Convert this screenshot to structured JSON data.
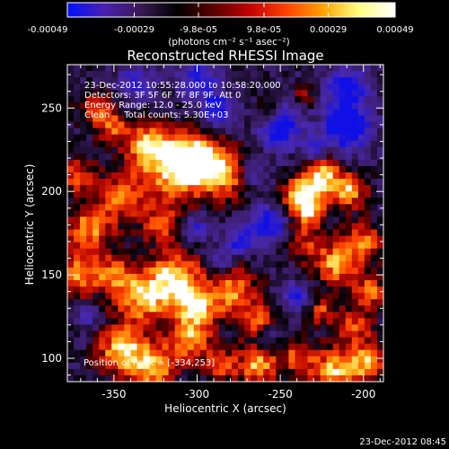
{
  "chart_data": {
    "type": "heatmap",
    "title": "Reconstructed RHESSI Image",
    "xlabel": "Heliocentric X (arcsec)",
    "ylabel": "Heliocentric Y (arcsec)",
    "xlim": [
      -378,
      -188
    ],
    "ylim": [
      86,
      276
    ],
    "xticks": [
      -350,
      -300,
      -250,
      -200
    ],
    "yticks": [
      100,
      150,
      200,
      250
    ],
    "colorbar": {
      "range": [
        -0.00049,
        0.00049
      ],
      "tick_values": [
        -0.00049,
        -0.00029,
        -9.8e-05,
        9.8e-05,
        0.00029,
        0.00049
      ],
      "tick_labels": [
        "-0.00049",
        "-0.00029",
        "-9.8e-05",
        "9.8e-05",
        "0.00029",
        "0.00049"
      ],
      "units_label": "(photons cm⁻² s⁻¹ asec⁻²)",
      "colors": [
        "#0010ff",
        "#4a1fb0",
        "#3a1a55",
        "#000000",
        "#5a0000",
        "#c00000",
        "#ff4000",
        "#ffa000",
        "#ffff80",
        "#ffffff"
      ]
    },
    "annotations": {
      "time_range": "23-Dec-2012 10:55:28.000 to 10:58:20.000",
      "detectors": "Detectors: 3F 5F 6F 7F 8F 9F, Att 0",
      "energy": "Energy Range: 12.0 - 25.0 keV",
      "clean": "Clean     Total counts: 5.30E+03",
      "peak": "Position of Peak = [-334,253]"
    },
    "peak_position": [
      -334,
      253
    ],
    "blobs": [
      [
        -330,
        228,
        10,
        0.8
      ],
      [
        -312,
        213,
        14,
        1.0
      ],
      [
        -300,
        220,
        9,
        0.9
      ],
      [
        -283,
        211,
        10,
        0.9
      ],
      [
        -345,
        197,
        10,
        0.7
      ],
      [
        -322,
        180,
        8,
        0.6
      ],
      [
        -365,
        178,
        10,
        0.8
      ],
      [
        -372,
        210,
        8,
        0.6
      ],
      [
        -372,
        150,
        9,
        0.8
      ],
      [
        -350,
        150,
        8,
        0.7
      ],
      [
        -333,
        136,
        11,
        0.9
      ],
      [
        -313,
        148,
        11,
        1.0
      ],
      [
        -300,
        130,
        9,
        0.9
      ],
      [
        -278,
        140,
        10,
        0.8
      ],
      [
        -263,
        122,
        8,
        0.6
      ],
      [
        -238,
        196,
        8,
        0.9
      ],
      [
        -225,
        208,
        9,
        1.0
      ],
      [
        -208,
        200,
        7,
        0.8
      ],
      [
        -232,
        186,
        7,
        0.6
      ],
      [
        -216,
        157,
        9,
        0.9
      ],
      [
        -200,
        170,
        8,
        0.7
      ],
      [
        -236,
        168,
        7,
        0.5
      ],
      [
        -196,
        140,
        7,
        0.7
      ],
      [
        -205,
        120,
        8,
        0.6
      ],
      [
        -226,
        128,
        6,
        0.6
      ],
      [
        -345,
        105,
        10,
        1.0
      ],
      [
        -326,
        95,
        9,
        0.9
      ],
      [
        -305,
        110,
        9,
        0.8
      ],
      [
        -285,
        96,
        7,
        0.6
      ],
      [
        -263,
        96,
        8,
        0.9
      ],
      [
        -218,
        92,
        10,
        0.9
      ],
      [
        -198,
        98,
        8,
        0.8
      ],
      [
        -240,
        101,
        7,
        0.6
      ],
      [
        -360,
        248,
        8,
        0.6
      ],
      [
        -350,
        238,
        6,
        0.5
      ],
      [
        -258,
        248,
        6,
        0.4
      ],
      [
        -235,
        258,
        5,
        0.4
      ],
      [
        -288,
        250,
        7,
        -0.8
      ],
      [
        -250,
        238,
        9,
        -0.9
      ],
      [
        -210,
        238,
        10,
        -1.0
      ],
      [
        -210,
        262,
        9,
        -0.8
      ],
      [
        -300,
        268,
        8,
        -0.7
      ],
      [
        -258,
        180,
        8,
        -0.8
      ],
      [
        -275,
        170,
        6,
        -0.6
      ],
      [
        -230,
        225,
        5,
        -0.6
      ],
      [
        -268,
        210,
        6,
        -0.5
      ],
      [
        -338,
        265,
        8,
        -0.5
      ],
      [
        -300,
        178,
        6,
        -0.5
      ],
      [
        -285,
        158,
        5,
        -0.4
      ],
      [
        -240,
        137,
        6,
        -0.6
      ],
      [
        -258,
        112,
        5,
        -0.5
      ],
      [
        -365,
        125,
        5,
        -0.4
      ]
    ],
    "colorbar_gradient": [
      "#0010ff",
      "#4a1fb0",
      "#3a1a55",
      "#000000",
      "#5a0000",
      "#c00000",
      "#ff4000",
      "#ffa000",
      "#ffff80",
      "#ffffff"
    ]
  },
  "footer": {
    "timestamp": "23-Dec-2012 08:45"
  }
}
